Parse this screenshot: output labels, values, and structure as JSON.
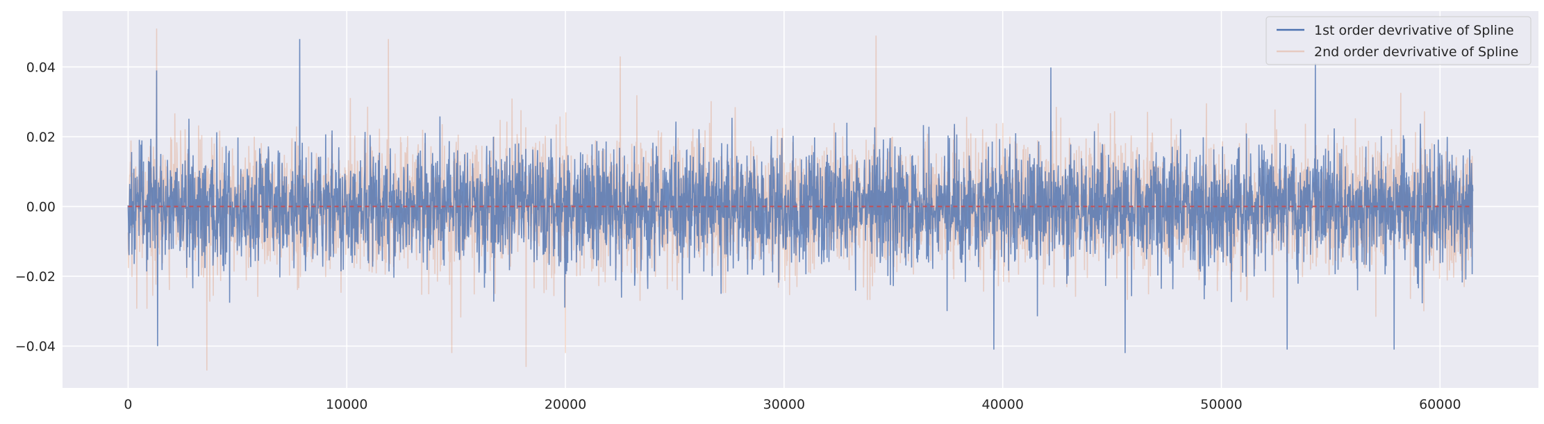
{
  "chart_data": {
    "type": "line",
    "title": "",
    "xlabel": "",
    "ylabel": "",
    "xlim": [
      -3000,
      64500
    ],
    "ylim": [
      -0.052,
      0.056
    ],
    "x_ticks": [
      0,
      10000,
      20000,
      30000,
      40000,
      50000,
      60000
    ],
    "x_tick_labels": [
      "0",
      "10000",
      "20000",
      "30000",
      "40000",
      "50000",
      "60000"
    ],
    "y_ticks": [
      -0.04,
      -0.02,
      0.0,
      0.02,
      0.04
    ],
    "y_tick_labels": [
      "−0.04",
      "−0.02",
      "0.00",
      "0.02",
      "0.04"
    ],
    "grid": true,
    "legend_placement": "top-right",
    "x_range": [
      0,
      61500
    ],
    "series": [
      {
        "name": "1st order devrivative of Spline",
        "color": "#4c72b0",
        "mean": 0.0,
        "std": 0.0085,
        "x_range": [
          0,
          61500
        ],
        "peaks": [
          {
            "x": 7850,
            "y": 0.048
          },
          {
            "x": 1300,
            "y": 0.039
          },
          {
            "x": 54300,
            "y": 0.041
          },
          {
            "x": 1350,
            "y": -0.04
          },
          {
            "x": 45600,
            "y": -0.042
          },
          {
            "x": 53000,
            "y": -0.041
          },
          {
            "x": 57900,
            "y": -0.041
          },
          {
            "x": 39600,
            "y": -0.041
          }
        ]
      },
      {
        "name": "2nd order devrivative of Spline",
        "color": "#dd8452",
        "mean": 0.0,
        "std": 0.0095,
        "x_range": [
          0,
          61500
        ],
        "peaks": [
          {
            "x": 1300,
            "y": 0.051
          },
          {
            "x": 11900,
            "y": 0.048
          },
          {
            "x": 34200,
            "y": 0.049
          },
          {
            "x": 22500,
            "y": 0.043
          },
          {
            "x": 3600,
            "y": -0.047
          },
          {
            "x": 18200,
            "y": -0.046
          },
          {
            "x": 14800,
            "y": -0.042
          },
          {
            "x": 20000,
            "y": -0.042
          }
        ]
      }
    ],
    "reference_line": {
      "y": 0.0,
      "color": "#c44e52",
      "style": "dashed"
    }
  }
}
